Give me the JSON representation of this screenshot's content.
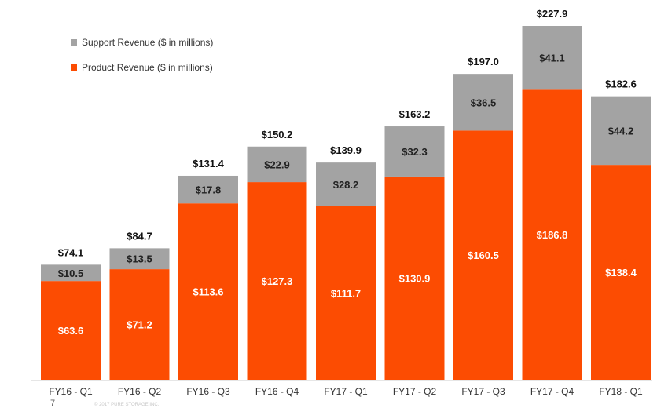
{
  "chart_data": {
    "type": "bar",
    "stacked": true,
    "categories": [
      "FY16 - Q1",
      "FY16 - Q2",
      "FY16 - Q3",
      "FY16 - Q4",
      "FY17 - Q1",
      "FY17 - Q2",
      "FY17 - Q3",
      "FY17 - Q4",
      "FY18 - Q1"
    ],
    "series": [
      {
        "name": "Product Revenue ($ in millions)",
        "color": "#fc4c02",
        "values": [
          63.6,
          71.2,
          113.6,
          127.3,
          111.7,
          130.9,
          160.5,
          186.8,
          138.4
        ],
        "labels": [
          "$63.6",
          "$71.2",
          "$113.6",
          "$127.3",
          "$111.7",
          "$130.9",
          "$160.5",
          "$186.8",
          "$138.4"
        ]
      },
      {
        "name": "Support Revenue ($ in millions)",
        "color": "#a3a3a3",
        "values": [
          10.5,
          13.5,
          17.8,
          22.9,
          28.2,
          32.3,
          36.5,
          41.1,
          44.2
        ],
        "labels": [
          "$10.5",
          "$13.5",
          "$17.8",
          "$22.9",
          "$28.2",
          "$32.3",
          "$36.5",
          "$41.1",
          "$44.2"
        ]
      }
    ],
    "totals": [
      74.1,
      84.7,
      131.4,
      150.2,
      139.9,
      163.2,
      197.0,
      227.9,
      182.6
    ],
    "total_labels": [
      "$74.1",
      "$84.7",
      "$131.4",
      "$150.2",
      "$139.9",
      "$163.2",
      "$197.0",
      "$227.9",
      "$182.6"
    ],
    "legend": {
      "position": "top-left",
      "order": [
        "Support Revenue ($ in millions)",
        "Product Revenue ($ in millions)"
      ]
    },
    "title": "",
    "xlabel": "",
    "ylabel": "",
    "ylim": [
      0,
      227.9
    ],
    "grid": false,
    "y_axis_visible": false
  },
  "footer": {
    "slide_number": "7",
    "note": "© 2017 PURE STORAGE INC."
  }
}
